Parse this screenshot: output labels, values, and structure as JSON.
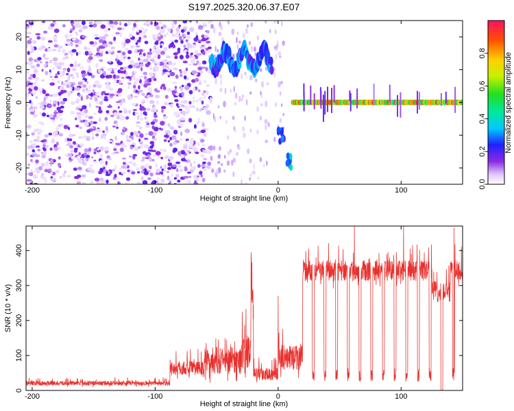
{
  "title": "S197.2025.320.06.37.E07",
  "chart_data": [
    {
      "type": "heatmap",
      "name": "spectrogram",
      "xlabel": "Height of straight line (km)",
      "ylabel": "Frequency (Hz)",
      "xlim": [
        -205,
        150
      ],
      "ylim": [
        -25,
        25
      ],
      "xticks": [
        -200,
        -100,
        0,
        100
      ],
      "yticks": [
        -20,
        -10,
        0,
        10,
        20
      ],
      "colorbar": {
        "label": "Normalized spectral amplitude",
        "range": [
          0,
          1
        ],
        "ticks": [
          0.0,
          0.2,
          0.4,
          0.6,
          0.8
        ]
      },
      "features": [
        {
          "x_range": [
            -205,
            -55
          ],
          "y_range": [
            -25,
            25
          ],
          "amplitude": 0.1,
          "kind": "noise"
        },
        {
          "x_range": [
            -55,
            -5
          ],
          "freq": 13,
          "amplitude": 0.35,
          "kind": "band"
        },
        {
          "x_range": [
            0,
            5
          ],
          "freq": -10,
          "amplitude": 0.3,
          "kind": "blob"
        },
        {
          "x_range": [
            7,
            11
          ],
          "freq": -18,
          "amplitude": 0.4,
          "kind": "blob"
        },
        {
          "x_range": [
            12,
            150
          ],
          "freq": 0,
          "amplitude": 0.9,
          "kind": "band"
        }
      ]
    },
    {
      "type": "line",
      "name": "snr",
      "xlabel": "Height of straight line (km)",
      "ylabel": "SNR (10 * v/v)",
      "xlim": [
        -205,
        150
      ],
      "ylim": [
        0,
        470
      ],
      "xticks": [
        -200,
        -100,
        0,
        100
      ],
      "yticks": [
        0,
        100,
        200,
        300,
        400
      ],
      "color": "#e8312e",
      "segments": [
        {
          "x": [
            -205,
            -88
          ],
          "base": 18,
          "spread": 22
        },
        {
          "x": [
            -88,
            -60
          ],
          "base": 55,
          "spread": 70
        },
        {
          "x": [
            -60,
            -30
          ],
          "base": 70,
          "spread": 130
        },
        {
          "x": [
            -30,
            -22
          ],
          "base": 90,
          "spread": 160
        },
        {
          "x": [
            -22,
            -20
          ],
          "base": 250,
          "spread": 140
        },
        {
          "x": [
            -20,
            0
          ],
          "base": 40,
          "spread": 60
        },
        {
          "x": [
            0,
            20
          ],
          "base": 80,
          "spread": 120
        },
        {
          "x": [
            20,
            150
          ],
          "base": 330,
          "spread": 100,
          "dropouts": true
        }
      ],
      "peaks": [
        {
          "x": -22,
          "y": 395
        },
        {
          "x": 0,
          "y": 270
        },
        {
          "x": 62,
          "y": 470
        },
        {
          "x": 102,
          "y": 470
        },
        {
          "x": 143,
          "y": 465
        }
      ]
    }
  ]
}
